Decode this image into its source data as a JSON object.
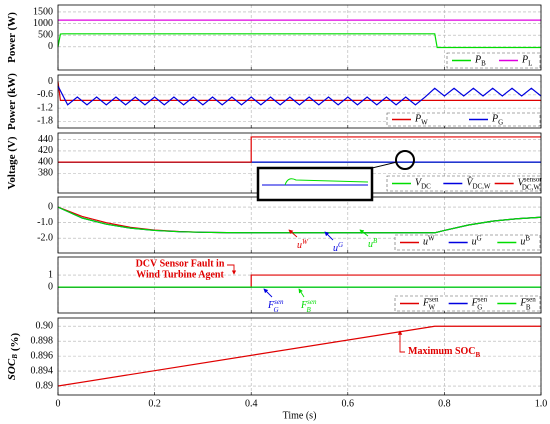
{
  "chart_data": [
    {
      "type": "line",
      "ylabel": "Power (W)",
      "xlim": [
        0,
        1
      ],
      "xticks": [
        0,
        0.2,
        0.4,
        0.6,
        0.8,
        {
          "value": 1,
          "label": "1.0"
        }
      ],
      "ylim": [
        -1000,
        1800
      ],
      "yticks": [
        1500,
        1000,
        500,
        0
      ],
      "grid": true,
      "series": [
        {
          "name": "P",
          "name_sub": "B",
          "color": "#00dd00",
          "x": [
            0,
            0.005,
            0.01,
            0.78,
            0.785,
            1
          ],
          "values": [
            0,
            550,
            560,
            560,
            -30,
            -30
          ]
        },
        {
          "name": "P",
          "name_sub": "L",
          "color": "#e000e0",
          "x": [
            0,
            1
          ],
          "values": [
            1150,
            1150
          ]
        }
      ]
    },
    {
      "type": "line",
      "ylabel": "Power (kW)",
      "xlim": [
        0,
        1
      ],
      "xticks": [
        0,
        0.2,
        0.4,
        0.6,
        0.8,
        {
          "value": 1,
          "label": "1.0"
        }
      ],
      "ylim": [
        -2.1,
        0.3
      ],
      "yticks": [
        0,
        -0.6,
        -1.2,
        -1.8
      ],
      "grid": true,
      "series": [
        {
          "name": "P",
          "name_sub": "W",
          "color": "#e00000",
          "x": [
            0,
            0.005,
            1
          ],
          "values": [
            0,
            -0.85,
            -0.85
          ]
        },
        {
          "name": "P",
          "name_sub": "G",
          "color": "#0000e0",
          "x": [
            0,
            0.02,
            0.04,
            0.06,
            0.08,
            0.1,
            0.12,
            0.14,
            0.16,
            0.18,
            0.2,
            0.22,
            0.24,
            0.26,
            0.28,
            0.3,
            0.32,
            0.34,
            0.36,
            0.38,
            0.4,
            0.42,
            0.44,
            0.46,
            0.48,
            0.5,
            0.52,
            0.54,
            0.56,
            0.58,
            0.6,
            0.62,
            0.64,
            0.66,
            0.68,
            0.7,
            0.72,
            0.74,
            0.76,
            0.78,
            0.8,
            0.82,
            0.84,
            0.86,
            0.88,
            0.9,
            0.92,
            0.94,
            0.96,
            0.98,
            1
          ],
          "values": [
            -0.2,
            -1.05,
            -0.7,
            -1.05,
            -0.7,
            -1.05,
            -0.7,
            -1.05,
            -0.7,
            -1.05,
            -0.7,
            -1.05,
            -0.7,
            -1.05,
            -0.7,
            -1.05,
            -0.7,
            -1.05,
            -0.7,
            -1.05,
            -0.7,
            -1.05,
            -0.7,
            -1.05,
            -0.7,
            -1.05,
            -0.7,
            -1.05,
            -0.7,
            -1.05,
            -0.7,
            -1.05,
            -0.7,
            -1.05,
            -0.7,
            -1.05,
            -0.7,
            -1.05,
            -0.7,
            -0.3,
            -0.65,
            -0.3,
            -0.65,
            -0.3,
            -0.65,
            -0.3,
            -0.65,
            -0.3,
            -0.65,
            -0.3,
            -0.65
          ]
        }
      ]
    },
    {
      "type": "line",
      "ylabel": "Voltage (V)",
      "xlim": [
        0,
        1
      ],
      "xticks": [
        0,
        0.2,
        0.4,
        0.6,
        0.8,
        {
          "value": 1,
          "label": "1.0"
        }
      ],
      "ylim": [
        345,
        452
      ],
      "yticks": [
        440,
        420,
        400,
        380
      ],
      "grid": true,
      "series": [
        {
          "name": "V",
          "name_sub": "DC",
          "color": "#00dd00",
          "x": [
            0,
            1
          ],
          "values": [
            400,
            400
          ]
        },
        {
          "name": "V̂",
          "name_sub": "DC,W",
          "color": "#0000e0",
          "x": [
            0,
            1
          ],
          "values": [
            400,
            400
          ]
        },
        {
          "name": "V",
          "name_sup": "sensor",
          "name_sub": "DC,W",
          "color": "#e00000",
          "x": [
            0,
            0.4,
            0.4,
            1
          ],
          "values": [
            400,
            400,
            445,
            445
          ]
        }
      ]
    },
    {
      "type": "line",
      "xlim": [
        0,
        1
      ],
      "xticks": [
        0,
        0.2,
        0.4,
        0.6,
        0.8,
        {
          "value": 1,
          "label": "1.0"
        }
      ],
      "ylim": [
        -2.95,
        0.65
      ],
      "yticks": [
        0,
        {
          "value": -1,
          "label": "-1.0"
        },
        {
          "value": -2,
          "label": "-2.0"
        }
      ],
      "grid": true,
      "series": [
        {
          "name": "u",
          "name_sup": "W",
          "color": "#e00000",
          "x": [
            0,
            0.05,
            0.1,
            0.15,
            0.2,
            0.25,
            0.3,
            0.35,
            0.4,
            0.78,
            0.8,
            0.85,
            0.9,
            0.95,
            1
          ],
          "values": [
            0,
            -0.6,
            -1.0,
            -1.3,
            -1.48,
            -1.57,
            -1.62,
            -1.64,
            -1.65,
            -1.65,
            -1.5,
            -1.15,
            -0.9,
            -0.75,
            -0.65
          ]
        },
        {
          "name": "u",
          "name_sup": "G",
          "color": "#0000e0",
          "x": [
            0,
            0.05,
            0.1,
            0.15,
            0.2,
            0.25,
            0.3,
            0.35,
            0.4,
            0.78,
            0.8,
            0.85,
            0.9,
            0.95,
            1
          ],
          "values": [
            0,
            -0.7,
            -1.1,
            -1.35,
            -1.5,
            -1.58,
            -1.62,
            -1.64,
            -1.65,
            -1.65,
            -1.5,
            -1.15,
            -0.9,
            -0.75,
            -0.65
          ]
        },
        {
          "name": "u",
          "name_sup": "B",
          "color": "#00dd00",
          "x": [
            0,
            0.05,
            0.1,
            0.15,
            0.2,
            0.25,
            0.3,
            0.35,
            0.4,
            0.78,
            0.8,
            0.85,
            0.9,
            0.95,
            1
          ],
          "values": [
            0,
            -0.7,
            -1.1,
            -1.35,
            -1.5,
            -1.58,
            -1.62,
            -1.64,
            -1.65,
            -1.65,
            -1.5,
            -1.15,
            -0.9,
            -0.75,
            -0.65
          ]
        }
      ],
      "annotations": [
        {
          "text": "u",
          "sup": "W",
          "color": "#e00000"
        },
        {
          "text": "u",
          "sup": "G",
          "color": "#0000e0"
        },
        {
          "text": "u",
          "sup": "B",
          "color": "#00dd00"
        }
      ]
    },
    {
      "type": "line",
      "xlim": [
        0,
        1
      ],
      "xticks": [
        0,
        0.2,
        0.4,
        0.6,
        0.8,
        {
          "value": 1,
          "label": "1.0"
        }
      ],
      "ylim": [
        -2.15,
        2.5
      ],
      "yticks": [
        1,
        0
      ],
      "grid": true,
      "series": [
        {
          "name": "F",
          "name_sup": "sen",
          "name_sub": "W",
          "color": "#e00000",
          "x": [
            0,
            0.4,
            0.4,
            1
          ],
          "values": [
            0,
            0,
            1,
            1
          ]
        },
        {
          "name": "F",
          "name_sup": "sen",
          "name_sub": "G",
          "color": "#0000e0",
          "x": [
            0,
            1
          ],
          "values": [
            0,
            0
          ]
        },
        {
          "name": "F",
          "name_sup": "sen",
          "name_sub": "B",
          "color": "#00dd00",
          "x": [
            0,
            1
          ],
          "values": [
            0,
            0
          ]
        }
      ],
      "annotations": [
        {
          "text": [
            "DCV Sensor Fault in",
            "Wind Turbine Agent"
          ],
          "color": "#e00000"
        },
        {
          "text": "F",
          "sup": "sen",
          "sub": "G",
          "color": "#0000e0"
        },
        {
          "text": "F",
          "sup": "sen",
          "sub": "B",
          "color": "#00dd00"
        }
      ]
    },
    {
      "type": "line",
      "ylabel": "SOC",
      "ylabel_sub": "B",
      "ylabel_after": "(%)",
      "xlabel": "Time (s)",
      "xlim": [
        0,
        1
      ],
      "xticks": [
        0,
        0.2,
        0.4,
        0.6,
        0.8,
        {
          "value": 1,
          "label": "1.0"
        }
      ],
      "ylim": [
        0.8908,
        0.9011
      ],
      "yticks": [
        {
          "value": 0.9,
          "label": "0.90"
        },
        0.898,
        0.896,
        0.894,
        {
          "value": 0.892,
          "label": "0.89"
        }
      ],
      "grid": true,
      "series": [
        {
          "color": "#e00000",
          "x": [
            0,
            0.78,
            1
          ],
          "values": [
            0.892,
            0.9,
            0.9
          ]
        }
      ],
      "annotations": [
        {
          "text": "Maximum SOC",
          "sub": "B",
          "color": "#e00000"
        }
      ]
    }
  ]
}
